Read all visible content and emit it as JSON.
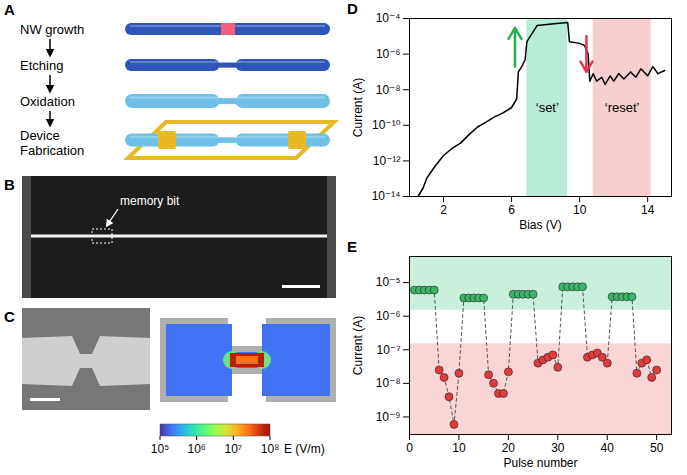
{
  "panels": [
    {
      "letter": "A",
      "steps": [
        "NW growth",
        "Etching",
        "Oxidation",
        "Device Fabrication"
      ]
    },
    {
      "letter": "B",
      "annotation": "memory bit"
    },
    {
      "letter": "C",
      "colorbar": {
        "label": "E (V/m)",
        "range": [
          100000,
          100000000
        ],
        "log": true,
        "ticks": [
          {
            "value": 100000,
            "label": "10⁵"
          },
          {
            "value": 1000000,
            "label": "10⁶"
          },
          {
            "value": 10000000,
            "label": "10⁷"
          },
          {
            "value": 100000000,
            "label": "10⁸"
          }
        ]
      }
    }
  ],
  "chart_data": [
    {
      "type": "line",
      "panel": "D",
      "x_label": "Bias (V)",
      "y_label": "Current (A)",
      "log": "y",
      "grid": false,
      "color": "#000000",
      "x": [
        0.5,
        0.8,
        1.0,
        1.5,
        2.0,
        2.5,
        3.0,
        3.5,
        4.0,
        4.5,
        5.0,
        5.5,
        6.0,
        6.3,
        6.4,
        6.6,
        6.8,
        6.9,
        7.5,
        8.5,
        9.3,
        9.4,
        10.0,
        10.3,
        10.5,
        10.6,
        10.8,
        11.0,
        11.3,
        11.5,
        11.8,
        12.0,
        12.3,
        12.6,
        13.0,
        13.3,
        13.6,
        14.0,
        14.3,
        14.6,
        15.0
      ],
      "values": [
        1e-14,
        3e-14,
        1e-13,
        5e-13,
        2e-12,
        5e-12,
        1e-11,
        3e-11,
        8e-11,
        1.5e-10,
        3e-10,
        5e-10,
        1e-09,
        3e-09,
        1e-07,
        2e-07,
        5e-07,
        5e-06,
        4e-05,
        5e-05,
        6e-05,
        5e-06,
        4e-06,
        3e-06,
        1e-06,
        3e-08,
        8e-08,
        3e-08,
        5e-08,
        2e-08,
        6e-08,
        3e-08,
        8e-08,
        4e-08,
        1e-07,
        5e-08,
        1.5e-07,
        6e-08,
        2e-07,
        8e-08,
        1.2e-07
      ],
      "xlim": [
        0,
        15.4
      ],
      "xticks": [
        2,
        6,
        10,
        14
      ],
      "ylim": [
        1e-14,
        0.0001
      ],
      "yticks": [
        {
          "value": 1e-14,
          "label": "10⁻¹⁴"
        },
        {
          "value": 1e-12,
          "label": "10⁻¹²"
        },
        {
          "value": 1e-10,
          "label": "10⁻¹⁰"
        },
        {
          "value": 1e-08,
          "label": "10⁻⁸"
        },
        {
          "value": 1e-06,
          "label": "10⁻⁶"
        },
        {
          "value": 0.0001,
          "label": "10⁻⁴"
        }
      ],
      "regions": [
        {
          "label": "‘set’",
          "x": [
            6.9,
            9.3
          ],
          "color": "#b9ecd6"
        },
        {
          "label": "‘reset’",
          "x": [
            10.8,
            14.2
          ],
          "color": "#f8cfcf"
        }
      ],
      "arrows": [
        {
          "x": 6.2,
          "from": 2e-07,
          "to": 3e-05,
          "color": "#22b24c"
        },
        {
          "x": 10.4,
          "from": 1e-05,
          "to": 1e-07,
          "color": "#e8334f"
        }
      ]
    },
    {
      "type": "scatter",
      "panel": "E",
      "x_label": "Pulse number",
      "y_label": "Current (A)",
      "log": "y",
      "grid": false,
      "marker": "circle",
      "line_style": "dashed",
      "x": [
        1,
        2,
        3,
        4,
        5,
        6,
        7,
        8,
        9,
        10,
        11,
        12,
        13,
        14,
        15,
        16,
        17,
        18,
        19,
        20,
        21,
        22,
        23,
        24,
        25,
        26,
        27,
        28,
        29,
        30,
        31,
        32,
        33,
        34,
        35,
        36,
        37,
        38,
        39,
        40,
        41,
        42,
        43,
        44,
        45,
        46,
        47,
        48,
        49,
        50
      ],
      "values": [
        6e-06,
        6e-06,
        6e-06,
        6e-06,
        6e-06,
        2.5e-08,
        1.5e-08,
        4e-09,
        6e-10,
        2e-08,
        3.5e-06,
        3.5e-06,
        3.5e-06,
        3.5e-06,
        3.5e-06,
        1.8e-08,
        1e-08,
        5e-09,
        5e-09,
        2.2e-08,
        4.5e-06,
        4.5e-06,
        4.5e-06,
        4.5e-06,
        4.5e-06,
        4e-08,
        5e-08,
        6e-08,
        7e-08,
        3e-08,
        7.5e-06,
        7.5e-06,
        7.5e-06,
        7.5e-06,
        7.5e-06,
        6e-08,
        7e-08,
        8e-08,
        6e-08,
        4e-08,
        3.8e-06,
        3.8e-06,
        3.8e-06,
        3.8e-06,
        3.8e-06,
        2e-08,
        4e-08,
        5e-08,
        1.5e-08,
        2.5e-08
      ],
      "colors": [
        "#3cb56a",
        "#3cb56a",
        "#3cb56a",
        "#3cb56a",
        "#3cb56a",
        "#e23b3b",
        "#e23b3b",
        "#e23b3b",
        "#e23b3b",
        "#e23b3b",
        "#3cb56a",
        "#3cb56a",
        "#3cb56a",
        "#3cb56a",
        "#3cb56a",
        "#e23b3b",
        "#e23b3b",
        "#e23b3b",
        "#e23b3b",
        "#e23b3b",
        "#3cb56a",
        "#3cb56a",
        "#3cb56a",
        "#3cb56a",
        "#3cb56a",
        "#e23b3b",
        "#e23b3b",
        "#e23b3b",
        "#e23b3b",
        "#e23b3b",
        "#3cb56a",
        "#3cb56a",
        "#3cb56a",
        "#3cb56a",
        "#3cb56a",
        "#e23b3b",
        "#e23b3b",
        "#e23b3b",
        "#e23b3b",
        "#e23b3b",
        "#3cb56a",
        "#3cb56a",
        "#3cb56a",
        "#3cb56a",
        "#3cb56a",
        "#e23b3b",
        "#e23b3b",
        "#e23b3b",
        "#e23b3b",
        "#e23b3b"
      ],
      "xlim": [
        0,
        53
      ],
      "xticks": [
        0,
        10,
        20,
        30,
        40,
        50
      ],
      "ylim": [
        3e-10,
        6e-05
      ],
      "yticks": [
        {
          "value": 1e-09,
          "label": "10⁻⁹"
        },
        {
          "value": 1e-08,
          "label": "10⁻⁸"
        },
        {
          "value": 1e-07,
          "label": "10⁻⁷"
        },
        {
          "value": 1e-06,
          "label": "10⁻⁶"
        },
        {
          "value": 1e-05,
          "label": "10⁻⁵"
        }
      ],
      "bands": [
        {
          "y": [
            1.5e-06,
            6e-05
          ],
          "color": "#c9f0dd"
        },
        {
          "y": [
            3e-10,
            1.5e-07
          ],
          "color": "#f9d5d5"
        }
      ]
    }
  ]
}
